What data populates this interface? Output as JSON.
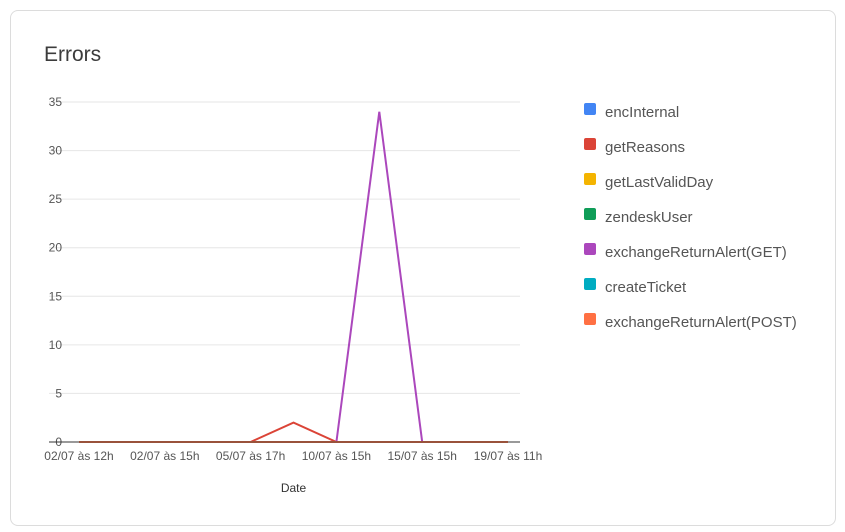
{
  "card": {
    "title": "Errors"
  },
  "chart_data": {
    "type": "line",
    "title": "Errors",
    "xlabel": "Date",
    "ylabel": "",
    "x": [
      "02/07 às 12h",
      "02/07 às 15h",
      "05/07 às 17h",
      "10/07 às 15h",
      "15/07 às 15h",
      "19/07 às 11h"
    ],
    "x_ticks": [
      "02/07 às 12h",
      "02/07 às 15h",
      "05/07 às 17h",
      "10/07 às 15h",
      "15/07 às 15h",
      "19/07 às 11h"
    ],
    "y_ticks": [
      0,
      5,
      10,
      15,
      20,
      25,
      30,
      35
    ],
    "ylim": [
      0,
      35
    ],
    "grid": true,
    "legend_position": "right",
    "series": [
      {
        "name": "encInternal",
        "color": "#4285f4",
        "points": [
          [
            0,
            0
          ],
          [
            1,
            0
          ],
          [
            2,
            0
          ],
          [
            3,
            0
          ],
          [
            4,
            0
          ],
          [
            5,
            0
          ]
        ]
      },
      {
        "name": "getReasons",
        "color": "#db4437",
        "points": [
          [
            0,
            0
          ],
          [
            1,
            0
          ],
          [
            2,
            0
          ],
          [
            2.5,
            2
          ],
          [
            3,
            0
          ],
          [
            4,
            0
          ],
          [
            5,
            0
          ]
        ]
      },
      {
        "name": "getLastValidDay",
        "color": "#f4b400",
        "points": [
          [
            0,
            0
          ],
          [
            1,
            0
          ],
          [
            2,
            0
          ],
          [
            3,
            0
          ],
          [
            4,
            0
          ],
          [
            5,
            0
          ]
        ]
      },
      {
        "name": "zendeskUser",
        "color": "#0f9d58",
        "points": [
          [
            0,
            0
          ],
          [
            1,
            0
          ],
          [
            2,
            0
          ],
          [
            3,
            0
          ],
          [
            4,
            0
          ],
          [
            5,
            0
          ]
        ]
      },
      {
        "name": "exchangeReturnAlert(GET)",
        "color": "#ab47bc",
        "points": [
          [
            0,
            0
          ],
          [
            1,
            0
          ],
          [
            2,
            0
          ],
          [
            3,
            0
          ],
          [
            3.5,
            34
          ],
          [
            4,
            0
          ],
          [
            5,
            0
          ]
        ]
      },
      {
        "name": "createTicket",
        "color": "#00acc1",
        "points": [
          [
            0,
            0
          ],
          [
            1,
            0
          ],
          [
            2,
            0
          ],
          [
            3,
            0
          ],
          [
            4,
            0
          ],
          [
            5,
            0
          ]
        ]
      },
      {
        "name": "exchangeReturnAlert(POST)",
        "color": "#ff7043",
        "points": [
          [
            0,
            0
          ],
          [
            1,
            0
          ],
          [
            2,
            0
          ],
          [
            3,
            0
          ],
          [
            4,
            0
          ],
          [
            5,
            0
          ]
        ]
      }
    ]
  }
}
